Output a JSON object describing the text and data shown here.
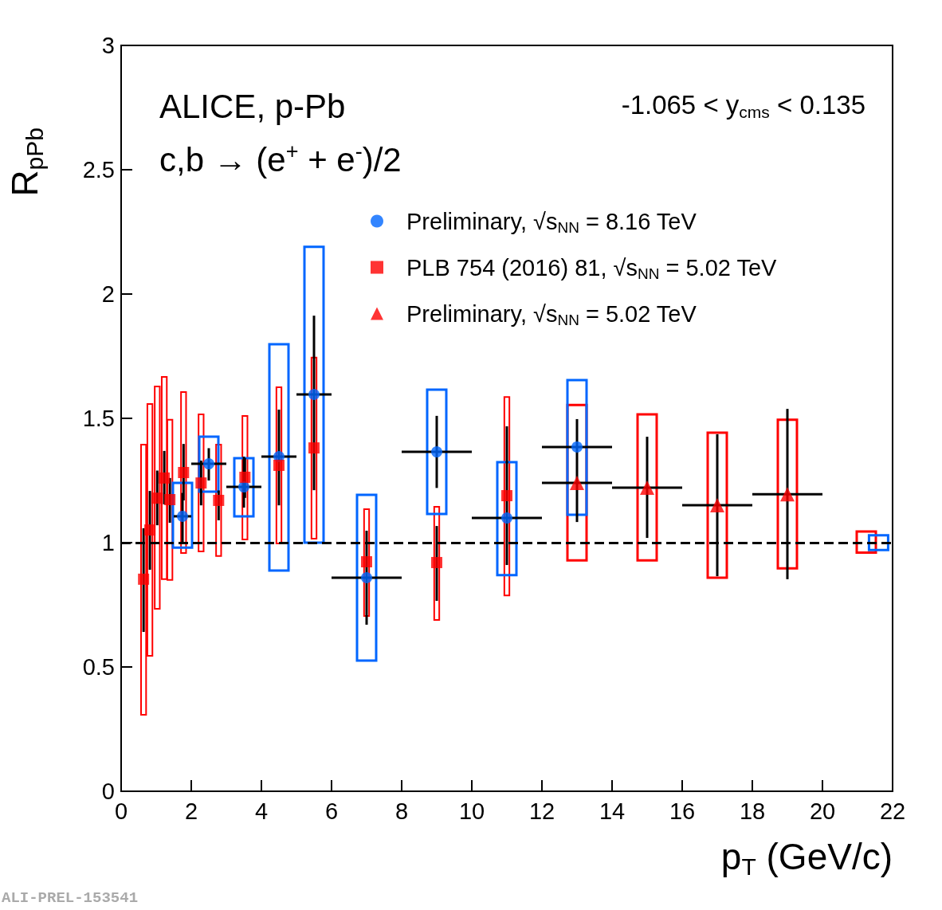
{
  "chart_data": {
    "type": "scatter",
    "xlabel": "p$_{T}$ (GeV/c)",
    "ylabel": "R$_{pPb}$",
    "xlim": [
      0,
      22
    ],
    "xticks": [
      0,
      2,
      4,
      6,
      8,
      10,
      12,
      14,
      16,
      18,
      20,
      22
    ],
    "ylim": [
      0,
      3
    ],
    "yticks": [
      0,
      0.5,
      1,
      1.5,
      2,
      2.5,
      3
    ],
    "legend": "top right",
    "grid": false,
    "annotations": [
      "ALICE, p-Pb",
      "c,b → (e$^{+}$ + e$^{-}$)/2",
      "-1.065 < y$_{cms}$ < 0.135",
      "ALI-PREL-153541"
    ],
    "ref_lines": [
      {
        "axis": "y",
        "value": 1,
        "line_style": "dashed",
        "color": "#000000"
      }
    ],
    "series": [
      {
        "type": "bar",
        "color": "#ff0000",
        "x": [
          0.64,
          0.82,
          1.03,
          1.23,
          1.39,
          1.78,
          2.28,
          2.78,
          3.53,
          4.5,
          5.5,
          7,
          9,
          11
        ],
        "base": [
          0.308,
          0.545,
          0.734,
          0.853,
          0.85,
          0.958,
          0.965,
          0.946,
          1.013,
          0.997,
          1.016,
          0.705,
          0.689,
          0.788
        ],
        "values": [
          1.086,
          1.013,
          0.894,
          0.814,
          0.644,
          0.648,
          0.551,
          0.448,
          0.497,
          0.628,
          0.728,
          0.43,
          0.455,
          0.798
        ]
      },
      {
        "type": "bar",
        "color": "#ff0000",
        "x": [
          13,
          15,
          17,
          19
        ],
        "base": [
          0.929,
          0.929,
          0.859,
          0.897
        ],
        "values": [
          0.625,
          0.587,
          0.583,
          0.597
        ]
      },
      {
        "type": "bar",
        "color": "#0066ff",
        "x": [
          1.75,
          2.5,
          3.5,
          4.5,
          5.5,
          7,
          9,
          11,
          13
        ],
        "base": [
          0.98,
          1.205,
          1.106,
          0.888,
          1.0,
          0.526,
          1.115,
          0.869,
          1.112
        ],
        "values": [
          0.26,
          0.221,
          0.234,
          0.91,
          1.19,
          0.666,
          0.5,
          0.455,
          0.542
        ]
      },
      {
        "type": "bar",
        "color": "#ff0000",
        "x": [
          21.25
        ],
        "base": [
          0.96
        ],
        "values": [
          0.085
        ]
      },
      {
        "type": "bar",
        "color": "#0066ff",
        "x": [
          21.6
        ],
        "base": [
          0.97
        ],
        "values": [
          0.06
        ]
      },
      {
        "name": "Preliminary, √s$_{NN}$ = 8.16 TeV",
        "marker": "circle",
        "color": "#0066ff",
        "x": [
          1.75,
          2.5,
          3.5,
          4.5,
          5.5,
          7,
          9,
          11,
          13
        ],
        "values": [
          1.106,
          1.317,
          1.224,
          1.346,
          1.596,
          0.859,
          1.365,
          1.099,
          1.385
        ],
        "errors": [
          [
            1.0,
            1.2
          ],
          [
            1.25,
            1.38
          ],
          [
            1.141,
            1.346
          ],
          [
            1.15,
            1.535
          ],
          [
            1.211,
            1.913
          ],
          [
            0.67,
            1.048
          ],
          [
            1.22,
            1.51
          ],
          [
            0.91,
            1.468
          ],
          [
            1.083,
            1.497
          ]
        ],
        "xerrors": [
          [
            1.5,
            2
          ],
          [
            2,
            3
          ],
          [
            3,
            4
          ],
          [
            4,
            5
          ],
          [
            5,
            6
          ],
          [
            6,
            8
          ],
          [
            8,
            10
          ],
          [
            10,
            12
          ],
          [
            12,
            14
          ]
        ]
      },
      {
        "name": "PLB 754 (2016) 81, √s$_{NN}$ = 5.02 TeV",
        "marker": "square",
        "color": "#ff0000",
        "x": [
          0.64,
          0.82,
          1.03,
          1.23,
          1.39,
          1.78,
          2.28,
          2.78,
          3.53,
          4.5,
          5.5,
          7,
          9,
          11
        ],
        "values": [
          0.853,
          1.051,
          1.179,
          1.26,
          1.173,
          1.282,
          1.24,
          1.17,
          1.263,
          1.311,
          1.381,
          0.923,
          0.92,
          1.189
        ],
        "errors": [
          [
            0.641,
            1.058
          ],
          [
            0.891,
            1.208
          ],
          [
            1.07,
            1.29
          ],
          [
            1.154,
            1.369
          ],
          [
            1.08,
            1.26
          ],
          [
            1.17,
            1.397
          ],
          [
            1.15,
            1.33
          ],
          [
            1.09,
            1.21
          ],
          [
            1.18,
            1.34
          ],
          null,
          null,
          null,
          [
            0.766,
            1.067
          ],
          null
        ]
      },
      {
        "name": "Preliminary, √s$_{NN}$ = 5.02 TeV",
        "marker": "triangle",
        "color": "#ff0000",
        "x": [
          13,
          15,
          17,
          19
        ],
        "values": [
          1.24,
          1.221,
          1.151,
          1.195
        ],
        "errors": [
          null,
          [
            1.019,
            1.426
          ],
          [
            0.865,
            1.436
          ],
          [
            0.853,
            1.538
          ]
        ],
        "xerrors": [
          [
            12,
            14
          ],
          [
            14,
            16
          ],
          [
            16,
            18
          ],
          [
            18,
            20
          ]
        ]
      }
    ]
  }
}
